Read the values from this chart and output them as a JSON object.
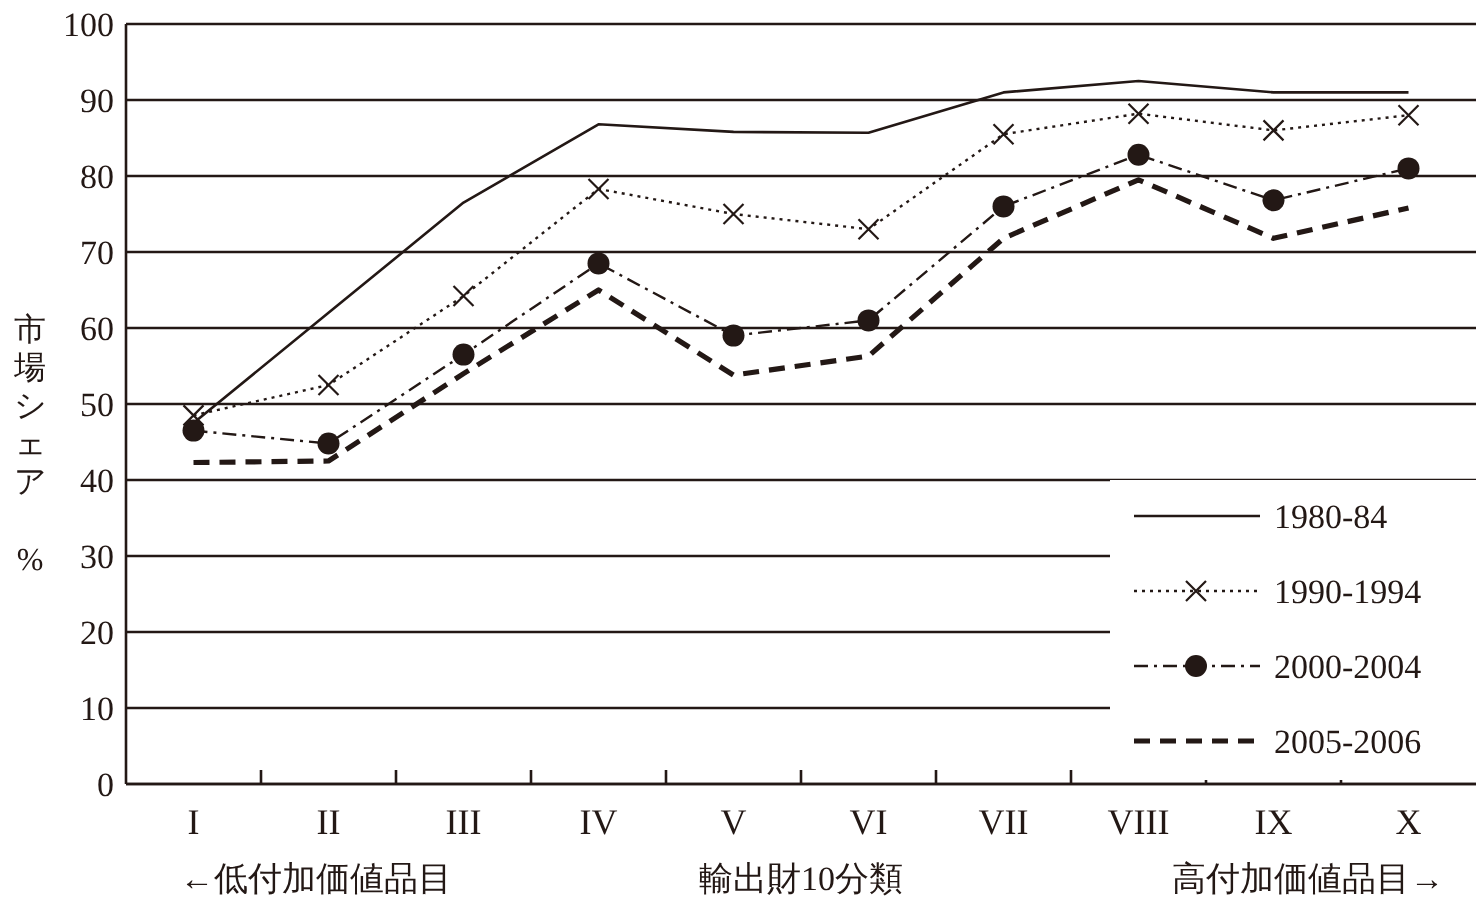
{
  "chart_data": {
    "type": "line",
    "categories": [
      "I",
      "II",
      "III",
      "IV",
      "V",
      "VI",
      "VII",
      "VIII",
      "IX",
      "X"
    ],
    "xlabel": "輸出財10分類",
    "ylabel": "市場シェア %",
    "annotations": [
      "←低付加価値品目",
      "高付加価値品目→"
    ],
    "ylim": [
      0,
      100
    ],
    "yticks": [
      0,
      10,
      20,
      30,
      40,
      50,
      60,
      70,
      80,
      90,
      100
    ],
    "grid": "y",
    "legend": "bottom right",
    "series": [
      {
        "name": "1980-84",
        "color": "#231815",
        "marker": "none",
        "line_style": "solid",
        "values": [
          47.5,
          62,
          76.5,
          86.8,
          85.8,
          85.7,
          91,
          92.5,
          91,
          91
        ]
      },
      {
        "name": "1990-1994",
        "color": "#231815",
        "marker": "cross",
        "line_style": "dotted",
        "values": [
          48.5,
          52.5,
          64.2,
          78.3,
          75,
          73,
          85.5,
          88.2,
          86,
          88
        ]
      },
      {
        "name": "2000-2004",
        "color": "#231815",
        "marker": "circle",
        "line_style": "dashdot",
        "values": [
          46.5,
          44.8,
          56.5,
          68.5,
          59,
          61,
          76,
          82.8,
          76.8,
          81
        ]
      },
      {
        "name": "2005-2006",
        "color": "#231815",
        "marker": "none",
        "line_style": "dashed",
        "values": [
          42.3,
          42.5,
          54,
          65,
          53.8,
          56.3,
          71.8,
          79.5,
          71.8,
          75.8
        ]
      }
    ]
  }
}
